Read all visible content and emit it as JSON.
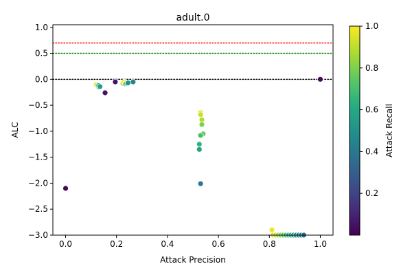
{
  "chart_data": {
    "type": "scatter",
    "title": "adult.0",
    "xlabel": "Attack Precision",
    "ylabel": "ALC",
    "xlim": [
      -0.05,
      1.05
    ],
    "ylim": [
      -3.0,
      1.05
    ],
    "xticks": [
      0.0,
      0.2,
      0.4,
      0.6,
      0.8,
      1.0
    ],
    "xtick_labels": [
      "0.0",
      "0.2",
      "0.4",
      "0.6",
      "0.8",
      "1.0"
    ],
    "yticks": [
      -3.0,
      -2.5,
      -2.0,
      -1.5,
      -1.0,
      -0.5,
      0.0,
      0.5,
      1.0
    ],
    "ytick_labels": [
      "−3.0",
      "−2.5",
      "−2.0",
      "−1.5",
      "−1.0",
      "−0.5",
      "0.0",
      "0.5",
      "1.0"
    ],
    "grid": false,
    "colormap": "viridis",
    "colorbar": {
      "label": "Attack Recall",
      "range": [
        0.0,
        1.0
      ],
      "ticks": [
        0.2,
        0.4,
        0.6,
        0.8,
        1.0
      ],
      "tick_labels": [
        "0.2",
        "0.4",
        "0.6",
        "0.8",
        "1.0"
      ]
    },
    "reference_lines": [
      {
        "y": 0.7,
        "color": "#ff0000",
        "style": "dotted"
      },
      {
        "y": 0.5,
        "color": "#008000",
        "style": "dotted"
      },
      {
        "y": 0.0,
        "color": "#000000",
        "style": "dotted"
      }
    ],
    "points": [
      {
        "x": 0.0,
        "y": -2.1,
        "recall": 0.02
      },
      {
        "x": 0.12,
        "y": -0.1,
        "recall": 0.98
      },
      {
        "x": 0.125,
        "y": -0.12,
        "recall": 0.85
      },
      {
        "x": 0.13,
        "y": -0.15,
        "recall": 0.75
      },
      {
        "x": 0.13,
        "y": -0.12,
        "recall": 0.65
      },
      {
        "x": 0.135,
        "y": -0.14,
        "recall": 0.55
      },
      {
        "x": 0.155,
        "y": -0.26,
        "recall": 0.05
      },
      {
        "x": 0.195,
        "y": -0.05,
        "recall": 0.05
      },
      {
        "x": 0.225,
        "y": -0.08,
        "recall": 0.9
      },
      {
        "x": 0.23,
        "y": -0.05,
        "recall": 1.0
      },
      {
        "x": 0.235,
        "y": -0.09,
        "recall": 0.7
      },
      {
        "x": 0.24,
        "y": -0.08,
        "recall": 0.6
      },
      {
        "x": 0.245,
        "y": -0.07,
        "recall": 0.5
      },
      {
        "x": 0.265,
        "y": -0.05,
        "recall": 0.45
      },
      {
        "x": 0.53,
        "y": -0.64,
        "recall": 0.97
      },
      {
        "x": 0.53,
        "y": -0.68,
        "recall": 0.92
      },
      {
        "x": 0.535,
        "y": -0.78,
        "recall": 0.88
      },
      {
        "x": 0.535,
        "y": -0.87,
        "recall": 0.8
      },
      {
        "x": 0.54,
        "y": -1.05,
        "recall": 0.75
      },
      {
        "x": 0.53,
        "y": -1.08,
        "recall": 0.7
      },
      {
        "x": 0.525,
        "y": -1.25,
        "recall": 0.65
      },
      {
        "x": 0.525,
        "y": -1.35,
        "recall": 0.58
      },
      {
        "x": 0.53,
        "y": -2.01,
        "recall": 0.4
      },
      {
        "x": 0.81,
        "y": -2.9,
        "recall": 0.98
      },
      {
        "x": 0.815,
        "y": -3.0,
        "recall": 0.95
      },
      {
        "x": 0.825,
        "y": -3.0,
        "recall": 0.9
      },
      {
        "x": 0.835,
        "y": -3.0,
        "recall": 0.85
      },
      {
        "x": 0.845,
        "y": -3.0,
        "recall": 0.8
      },
      {
        "x": 0.855,
        "y": -3.0,
        "recall": 0.75
      },
      {
        "x": 0.865,
        "y": -3.0,
        "recall": 0.7
      },
      {
        "x": 0.875,
        "y": -3.0,
        "recall": 0.65
      },
      {
        "x": 0.885,
        "y": -3.0,
        "recall": 0.6
      },
      {
        "x": 0.895,
        "y": -3.0,
        "recall": 0.55
      },
      {
        "x": 0.905,
        "y": -3.0,
        "recall": 0.5
      },
      {
        "x": 0.915,
        "y": -3.0,
        "recall": 0.45
      },
      {
        "x": 0.925,
        "y": -3.0,
        "recall": 0.4
      },
      {
        "x": 0.935,
        "y": -3.0,
        "recall": 0.35
      },
      {
        "x": 1.0,
        "y": 0.0,
        "recall": 0.02
      }
    ]
  }
}
